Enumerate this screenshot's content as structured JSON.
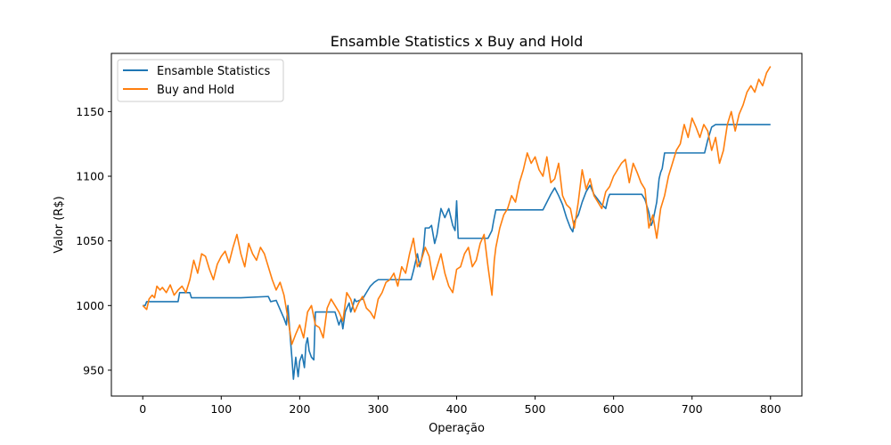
{
  "chart_data": {
    "type": "line",
    "title": "Ensamble Statistics x Buy and Hold",
    "xlabel": "Operação",
    "ylabel": "Valor (R$)",
    "xlim": [
      -40,
      840
    ],
    "ylim": [
      930,
      1195
    ],
    "xticks": [
      0,
      100,
      200,
      300,
      400,
      500,
      600,
      700,
      800
    ],
    "yticks": [
      950,
      1000,
      1050,
      1100,
      1150
    ],
    "grid": false,
    "legend_position": "top-left",
    "series": [
      {
        "name": "Ensamble Statistics",
        "color": "#1f77b4",
        "x": [
          0,
          3,
          5,
          45,
          47,
          60,
          62,
          125,
          160,
          163,
          170,
          175,
          180,
          183,
          185,
          188,
          190,
          192,
          195,
          198,
          200,
          203,
          206,
          208,
          210,
          212,
          215,
          218,
          220,
          225,
          245,
          250,
          253,
          255,
          258,
          260,
          263,
          265,
          268,
          270,
          272,
          280,
          285,
          290,
          295,
          300,
          342,
          345,
          350,
          353,
          355,
          358,
          360,
          365,
          368,
          372,
          375,
          380,
          385,
          390,
          395,
          398,
          400,
          402,
          405,
          440,
          445,
          447,
          450,
          510,
          515,
          520,
          525,
          530,
          535,
          540,
          545,
          548,
          550,
          555,
          560,
          565,
          570,
          575,
          580,
          585,
          590,
          593,
          595,
          636,
          640,
          645,
          648,
          650,
          655,
          658,
          660,
          662,
          665,
          680,
          716,
          720,
          725,
          730,
          735,
          745,
          760,
          800
        ],
        "y": [
          1000,
          1000,
          1003,
          1003,
          1010,
          1010,
          1006,
          1006,
          1007,
          1003,
          1004,
          997,
          990,
          985,
          1000,
          975,
          960,
          943,
          960,
          945,
          957,
          962,
          952,
          970,
          975,
          965,
          960,
          958,
          995,
          995,
          995,
          985,
          990,
          982,
          995,
          998,
          1002,
          995,
          1000,
          1005,
          1003,
          1005,
          1010,
          1015,
          1018,
          1020,
          1020,
          1027,
          1040,
          1030,
          1035,
          1045,
          1060,
          1060,
          1062,
          1048,
          1055,
          1075,
          1068,
          1075,
          1062,
          1058,
          1081,
          1052,
          1052,
          1052,
          1058,
          1065,
          1074,
          1074,
          1080,
          1086,
          1091,
          1085,
          1078,
          1068,
          1060,
          1057,
          1065,
          1070,
          1080,
          1088,
          1093,
          1086,
          1082,
          1078,
          1075,
          1083,
          1086,
          1086,
          1082,
          1072,
          1062,
          1065,
          1080,
          1098,
          1103,
          1106,
          1118,
          1118,
          1118,
          1128,
          1138,
          1140,
          1140,
          1140,
          1140,
          1140
        ]
      },
      {
        "name": "Buy and Hold",
        "color": "#ff7f0e",
        "x": [
          0,
          5,
          8,
          12,
          15,
          18,
          22,
          25,
          30,
          35,
          40,
          45,
          50,
          55,
          60,
          65,
          70,
          75,
          80,
          85,
          90,
          95,
          100,
          105,
          110,
          115,
          120,
          125,
          130,
          135,
          140,
          145,
          150,
          155,
          160,
          165,
          170,
          175,
          180,
          185,
          190,
          195,
          200,
          205,
          210,
          215,
          220,
          225,
          230,
          235,
          240,
          245,
          250,
          255,
          260,
          265,
          270,
          275,
          280,
          285,
          290,
          295,
          300,
          305,
          310,
          315,
          320,
          325,
          330,
          335,
          340,
          345,
          350,
          355,
          360,
          365,
          370,
          375,
          380,
          385,
          390,
          395,
          400,
          405,
          410,
          415,
          420,
          425,
          430,
          435,
          440,
          445,
          448,
          450,
          455,
          460,
          465,
          470,
          475,
          480,
          485,
          490,
          495,
          500,
          505,
          510,
          515,
          520,
          525,
          530,
          535,
          540,
          545,
          550,
          555,
          560,
          565,
          570,
          575,
          580,
          585,
          590,
          595,
          600,
          605,
          610,
          615,
          620,
          625,
          630,
          635,
          640,
          645,
          650,
          655,
          660,
          665,
          670,
          675,
          680,
          685,
          690,
          695,
          700,
          705,
          710,
          715,
          720,
          725,
          730,
          735,
          740,
          745,
          750,
          755,
          760,
          765,
          770,
          775,
          780,
          785,
          790,
          795,
          800
        ],
        "y": [
          1000,
          997,
          1005,
          1008,
          1006,
          1015,
          1012,
          1014,
          1010,
          1016,
          1008,
          1012,
          1015,
          1010,
          1020,
          1035,
          1025,
          1040,
          1038,
          1028,
          1020,
          1032,
          1038,
          1042,
          1033,
          1045,
          1055,
          1040,
          1030,
          1048,
          1040,
          1035,
          1045,
          1040,
          1030,
          1020,
          1012,
          1018,
          1008,
          990,
          970,
          978,
          985,
          975,
          995,
          1000,
          985,
          983,
          975,
          998,
          1005,
          1000,
          995,
          988,
          1010,
          1005,
          995,
          1002,
          1007,
          998,
          995,
          990,
          1005,
          1010,
          1018,
          1020,
          1025,
          1015,
          1030,
          1025,
          1040,
          1052,
          1030,
          1035,
          1045,
          1038,
          1020,
          1030,
          1040,
          1025,
          1015,
          1010,
          1028,
          1030,
          1040,
          1045,
          1030,
          1035,
          1048,
          1055,
          1030,
          1008,
          1035,
          1045,
          1060,
          1070,
          1075,
          1085,
          1080,
          1095,
          1105,
          1118,
          1110,
          1115,
          1105,
          1100,
          1115,
          1095,
          1098,
          1110,
          1085,
          1078,
          1075,
          1060,
          1080,
          1105,
          1090,
          1098,
          1085,
          1080,
          1075,
          1088,
          1092,
          1100,
          1105,
          1110,
          1113,
          1095,
          1110,
          1103,
          1095,
          1090,
          1060,
          1070,
          1052,
          1075,
          1085,
          1100,
          1110,
          1120,
          1125,
          1140,
          1130,
          1145,
          1138,
          1130,
          1140,
          1135,
          1120,
          1130,
          1110,
          1120,
          1140,
          1150,
          1135,
          1148,
          1155,
          1165,
          1170,
          1165,
          1175,
          1170,
          1180,
          1185
        ]
      }
    ]
  }
}
